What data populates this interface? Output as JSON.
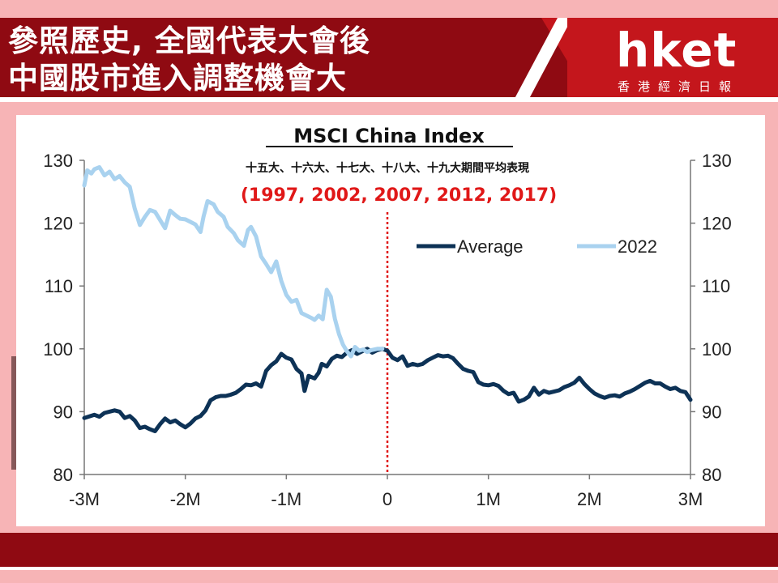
{
  "header": {
    "headline_line1": "參照歷史, 全國代表大會後",
    "headline_line2": "中國股市進入調整機會大",
    "logo_text": "hket",
    "logo_subtitle": "香港經濟日報"
  },
  "chart_data": {
    "type": "line",
    "title": "MSCI China Index",
    "subtitle": "十五大、十六大、十七大、十八大、十九大期間平均表現",
    "annotation": "(1997, 2002, 2007, 2012, 2017)",
    "xlabel": "",
    "ylabel": "",
    "x_ticks": [
      "-3M",
      "-2M",
      "-1M",
      "0",
      "1M",
      "2M",
      "3M"
    ],
    "y_ticks": [
      80,
      90,
      100,
      110,
      120,
      130
    ],
    "ylim": [
      80,
      130
    ],
    "xlim": [
      -3,
      3
    ],
    "legend_position": "upper-right, inside plot",
    "reference_line": {
      "x": 0,
      "style": "dotted",
      "color": "#e01818"
    },
    "series": [
      {
        "name": "Average",
        "color": "#0d3256",
        "points": [
          [
            -3.0,
            89.0
          ],
          [
            -2.9,
            89.5
          ],
          [
            -2.85,
            89.2
          ],
          [
            -2.8,
            89.8
          ],
          [
            -2.7,
            90.2
          ],
          [
            -2.65,
            90.0
          ],
          [
            -2.6,
            89.0
          ],
          [
            -2.55,
            89.3
          ],
          [
            -2.5,
            88.6
          ],
          [
            -2.45,
            87.4
          ],
          [
            -2.4,
            87.6
          ],
          [
            -2.35,
            87.2
          ],
          [
            -2.3,
            86.9
          ],
          [
            -2.25,
            88.0
          ],
          [
            -2.2,
            88.9
          ],
          [
            -2.15,
            88.3
          ],
          [
            -2.1,
            88.6
          ],
          [
            -2.05,
            88.0
          ],
          [
            -2.0,
            87.5
          ],
          [
            -1.95,
            88.1
          ],
          [
            -1.9,
            88.9
          ],
          [
            -1.85,
            89.3
          ],
          [
            -1.8,
            90.2
          ],
          [
            -1.75,
            91.8
          ],
          [
            -1.7,
            92.3
          ],
          [
            -1.65,
            92.5
          ],
          [
            -1.6,
            92.5
          ],
          [
            -1.55,
            92.7
          ],
          [
            -1.5,
            93.0
          ],
          [
            -1.45,
            93.6
          ],
          [
            -1.4,
            94.3
          ],
          [
            -1.35,
            94.2
          ],
          [
            -1.3,
            94.5
          ],
          [
            -1.25,
            94.0
          ],
          [
            -1.2,
            96.5
          ],
          [
            -1.15,
            97.4
          ],
          [
            -1.1,
            98.0
          ],
          [
            -1.05,
            99.2
          ],
          [
            -1.0,
            98.6
          ],
          [
            -0.95,
            98.3
          ],
          [
            -0.9,
            96.8
          ],
          [
            -0.85,
            96.1
          ],
          [
            -0.82,
            93.3
          ],
          [
            -0.78,
            95.7
          ],
          [
            -0.72,
            95.3
          ],
          [
            -0.68,
            96.2
          ],
          [
            -0.65,
            97.6
          ],
          [
            -0.6,
            97.2
          ],
          [
            -0.55,
            98.4
          ],
          [
            -0.5,
            98.9
          ],
          [
            -0.45,
            98.7
          ],
          [
            -0.4,
            99.4
          ],
          [
            -0.35,
            99.8
          ],
          [
            -0.3,
            99.2
          ],
          [
            -0.25,
            99.6
          ],
          [
            -0.2,
            100.0
          ],
          [
            -0.15,
            99.4
          ],
          [
            -0.1,
            99.8
          ],
          [
            -0.05,
            100.0
          ],
          [
            0.0,
            99.7
          ],
          [
            0.05,
            98.6
          ],
          [
            0.1,
            98.2
          ],
          [
            0.15,
            98.8
          ],
          [
            0.2,
            97.3
          ],
          [
            0.25,
            97.6
          ],
          [
            0.3,
            97.4
          ],
          [
            0.35,
            97.6
          ],
          [
            0.4,
            98.2
          ],
          [
            0.45,
            98.6
          ],
          [
            0.5,
            99.0
          ],
          [
            0.55,
            98.8
          ],
          [
            0.6,
            98.9
          ],
          [
            0.65,
            98.5
          ],
          [
            0.7,
            97.6
          ],
          [
            0.75,
            96.8
          ],
          [
            0.8,
            96.5
          ],
          [
            0.85,
            96.3
          ],
          [
            0.9,
            94.7
          ],
          [
            0.95,
            94.3
          ],
          [
            1.0,
            94.2
          ],
          [
            1.05,
            94.4
          ],
          [
            1.1,
            94.1
          ],
          [
            1.15,
            93.3
          ],
          [
            1.2,
            92.8
          ],
          [
            1.25,
            93.0
          ],
          [
            1.3,
            91.6
          ],
          [
            1.35,
            91.9
          ],
          [
            1.4,
            92.4
          ],
          [
            1.45,
            93.8
          ],
          [
            1.5,
            92.7
          ],
          [
            1.55,
            93.3
          ],
          [
            1.6,
            93.0
          ],
          [
            1.65,
            93.2
          ],
          [
            1.7,
            93.4
          ],
          [
            1.75,
            93.9
          ],
          [
            1.8,
            94.2
          ],
          [
            1.85,
            94.6
          ],
          [
            1.9,
            95.4
          ],
          [
            1.95,
            94.4
          ],
          [
            2.0,
            93.6
          ],
          [
            2.05,
            92.9
          ],
          [
            2.1,
            92.5
          ],
          [
            2.15,
            92.2
          ],
          [
            2.2,
            92.5
          ],
          [
            2.25,
            92.6
          ],
          [
            2.3,
            92.4
          ],
          [
            2.35,
            92.9
          ],
          [
            2.4,
            93.2
          ],
          [
            2.45,
            93.6
          ],
          [
            2.5,
            94.1
          ],
          [
            2.55,
            94.6
          ],
          [
            2.6,
            94.9
          ],
          [
            2.65,
            94.5
          ],
          [
            2.7,
            94.5
          ],
          [
            2.75,
            94.0
          ],
          [
            2.8,
            93.6
          ],
          [
            2.85,
            93.8
          ],
          [
            2.9,
            93.3
          ],
          [
            2.95,
            93.1
          ],
          [
            3.0,
            91.9
          ]
        ]
      },
      {
        "name": "2022",
        "color": "#a9d2ef",
        "points": [
          [
            -3.0,
            126.0
          ],
          [
            -2.97,
            128.4
          ],
          [
            -2.93,
            127.9
          ],
          [
            -2.9,
            128.6
          ],
          [
            -2.85,
            128.9
          ],
          [
            -2.8,
            127.6
          ],
          [
            -2.75,
            128.2
          ],
          [
            -2.7,
            127.0
          ],
          [
            -2.65,
            127.5
          ],
          [
            -2.6,
            126.5
          ],
          [
            -2.55,
            125.8
          ],
          [
            -2.5,
            122.3
          ],
          [
            -2.45,
            119.7
          ],
          [
            -2.4,
            121.0
          ],
          [
            -2.35,
            122.1
          ],
          [
            -2.3,
            121.8
          ],
          [
            -2.25,
            120.5
          ],
          [
            -2.2,
            119.2
          ],
          [
            -2.15,
            122.0
          ],
          [
            -2.1,
            121.3
          ],
          [
            -2.05,
            120.7
          ],
          [
            -2.0,
            120.6
          ],
          [
            -1.95,
            120.2
          ],
          [
            -1.9,
            119.8
          ],
          [
            -1.85,
            118.6
          ],
          [
            -1.82,
            121.0
          ],
          [
            -1.78,
            123.5
          ],
          [
            -1.72,
            123.0
          ],
          [
            -1.68,
            121.8
          ],
          [
            -1.62,
            121.0
          ],
          [
            -1.58,
            119.4
          ],
          [
            -1.52,
            118.4
          ],
          [
            -1.48,
            117.3
          ],
          [
            -1.42,
            116.4
          ],
          [
            -1.38,
            118.9
          ],
          [
            -1.35,
            119.4
          ],
          [
            -1.3,
            117.9
          ],
          [
            -1.25,
            114.7
          ],
          [
            -1.2,
            113.5
          ],
          [
            -1.15,
            112.2
          ],
          [
            -1.1,
            113.9
          ],
          [
            -1.05,
            110.8
          ],
          [
            -1.0,
            108.6
          ],
          [
            -0.95,
            107.5
          ],
          [
            -0.9,
            107.8
          ],
          [
            -0.85,
            105.7
          ],
          [
            -0.8,
            105.3
          ],
          [
            -0.75,
            104.9
          ],
          [
            -0.72,
            104.6
          ],
          [
            -0.68,
            105.3
          ],
          [
            -0.64,
            104.7
          ],
          [
            -0.6,
            109.4
          ],
          [
            -0.56,
            108.3
          ],
          [
            -0.52,
            104.8
          ],
          [
            -0.48,
            102.4
          ],
          [
            -0.44,
            100.7
          ],
          [
            -0.4,
            99.6
          ],
          [
            -0.36,
            98.8
          ],
          [
            -0.32,
            100.3
          ],
          [
            -0.28,
            99.7
          ],
          [
            -0.24,
            99.9
          ],
          [
            -0.2,
            99.5
          ],
          [
            -0.16,
            99.8
          ],
          [
            -0.1,
            100.0
          ],
          [
            -0.05,
            100.0
          ]
        ]
      }
    ]
  }
}
